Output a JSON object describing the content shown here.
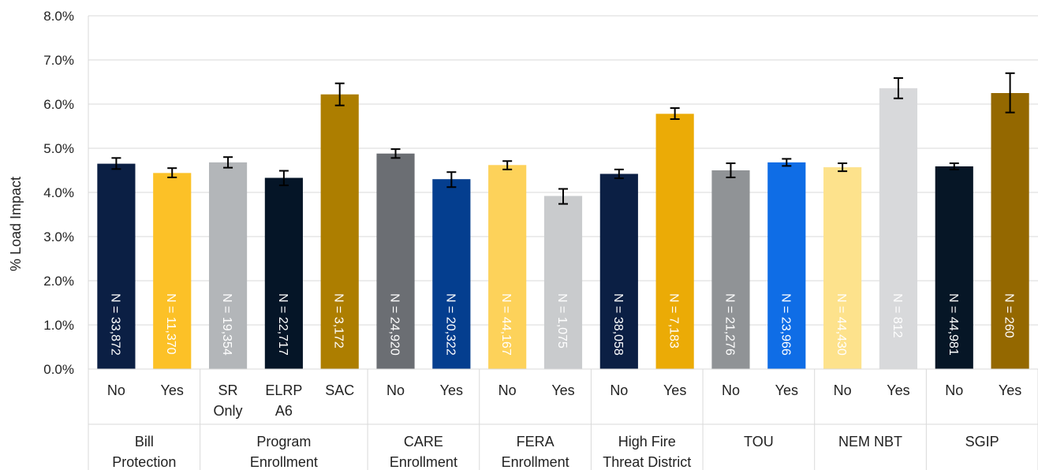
{
  "chart_data": {
    "type": "bar",
    "title": "",
    "xlabel": "",
    "ylabel": "% Load Impact",
    "ylim": [
      0,
      8
    ],
    "yticks": [
      "0.0%",
      "1.0%",
      "2.0%",
      "3.0%",
      "4.0%",
      "5.0%",
      "6.0%",
      "7.0%",
      "8.0%"
    ],
    "grid": true,
    "bars": [
      {
        "group": "Bill Protection",
        "category": [
          "No"
        ],
        "value": 4.65,
        "err_low": 4.53,
        "err_high": 4.78,
        "n_label": "N = 33,872",
        "color": "#0b1f44",
        "label_color": "#ffffff"
      },
      {
        "group": "Bill Protection",
        "category": [
          "Yes"
        ],
        "value": 4.44,
        "err_low": 4.34,
        "err_high": 4.55,
        "n_label": "N = 11,370",
        "color": "#fcc127",
        "label_color": "#ffffff"
      },
      {
        "group": "Program Enrollment",
        "category": [
          "SR",
          "Only"
        ],
        "value": 4.68,
        "err_low": 4.56,
        "err_high": 4.8,
        "n_label": "N = 19,354",
        "color": "#b3b6b9",
        "label_color": "#ffffff"
      },
      {
        "group": "Program Enrollment",
        "category": [
          "ELRP",
          "A6"
        ],
        "value": 4.33,
        "err_low": 4.16,
        "err_high": 4.49,
        "n_label": "N = 22,717",
        "color": "#051527",
        "label_color": "#ffffff"
      },
      {
        "group": "Program Enrollment",
        "category": [
          "SAC"
        ],
        "value": 6.22,
        "err_low": 5.97,
        "err_high": 6.47,
        "n_label": "N = 3,172",
        "color": "#ad7e00",
        "label_color": "#ffffff"
      },
      {
        "group": "CARE Enrollment",
        "category": [
          "No"
        ],
        "value": 4.88,
        "err_low": 4.78,
        "err_high": 4.98,
        "n_label": "N = 24,920",
        "color": "#6b6e73",
        "label_color": "#ffffff"
      },
      {
        "group": "CARE Enrollment",
        "category": [
          "Yes"
        ],
        "value": 4.3,
        "err_low": 4.12,
        "err_high": 4.46,
        "n_label": "N = 20,322",
        "color": "#043e8f",
        "label_color": "#ffffff"
      },
      {
        "group": "FERA Enrollment",
        "category": [
          "No"
        ],
        "value": 4.62,
        "err_low": 4.52,
        "err_high": 4.71,
        "n_label": "N = 44,167",
        "color": "#fdd25a",
        "label_color": "#ffffff"
      },
      {
        "group": "FERA Enrollment",
        "category": [
          "Yes"
        ],
        "value": 3.92,
        "err_low": 3.74,
        "err_high": 4.08,
        "n_label": "N = 1,075",
        "color": "#c9cbcd",
        "label_color": "#ffffff"
      },
      {
        "group": "High Fire Threat District",
        "category": [
          "No"
        ],
        "value": 4.42,
        "err_low": 4.32,
        "err_high": 4.52,
        "n_label": "N = 38,058",
        "color": "#0b1f44",
        "label_color": "#ffffff"
      },
      {
        "group": "High Fire Threat District",
        "category": [
          "Yes"
        ],
        "value": 5.78,
        "err_low": 5.66,
        "err_high": 5.91,
        "n_label": "N = 7,183",
        "color": "#ebab06",
        "label_color": "#ffffff"
      },
      {
        "group": "TOU",
        "category": [
          "No"
        ],
        "value": 4.5,
        "err_low": 4.34,
        "err_high": 4.66,
        "n_label": "N = 21,276",
        "color": "#909396",
        "label_color": "#ffffff"
      },
      {
        "group": "TOU",
        "category": [
          "Yes"
        ],
        "value": 4.68,
        "err_low": 4.6,
        "err_high": 4.76,
        "n_label": "N = 23,966",
        "color": "#0f6de6",
        "label_color": "#ffffff"
      },
      {
        "group": "NEM NBT",
        "category": [
          "No"
        ],
        "value": 4.57,
        "err_low": 4.48,
        "err_high": 4.66,
        "n_label": "N = 44,430",
        "color": "#fde28c",
        "label_color": "#ffffff"
      },
      {
        "group": "NEM NBT",
        "category": [
          "Yes"
        ],
        "value": 6.36,
        "err_low": 6.13,
        "err_high": 6.59,
        "n_label": "N = 812",
        "color": "#d8d9db",
        "label_color": "#ffffff"
      },
      {
        "group": "SGIP",
        "category": [
          "No"
        ],
        "value": 4.59,
        "err_low": 4.52,
        "err_high": 4.66,
        "n_label": "N = 44,981",
        "color": "#061626",
        "label_color": "#ffffff"
      },
      {
        "group": "SGIP",
        "category": [
          "Yes"
        ],
        "value": 6.25,
        "err_low": 5.81,
        "err_high": 6.7,
        "n_label": "N = 260",
        "color": "#946800",
        "label_color": "#ffffff"
      }
    ],
    "groups": [
      {
        "lines": [
          "Bill",
          "Protection"
        ],
        "count": 2
      },
      {
        "lines": [
          "Program",
          "Enrollment"
        ],
        "count": 3
      },
      {
        "lines": [
          "CARE",
          "Enrollment"
        ],
        "count": 2
      },
      {
        "lines": [
          "FERA",
          "Enrollment"
        ],
        "count": 2
      },
      {
        "lines": [
          "High Fire",
          "Threat District"
        ],
        "count": 2
      },
      {
        "lines": [
          "TOU"
        ],
        "count": 2
      },
      {
        "lines": [
          "NEM NBT"
        ],
        "count": 2
      },
      {
        "lines": [
          "SGIP"
        ],
        "count": 2
      }
    ]
  }
}
